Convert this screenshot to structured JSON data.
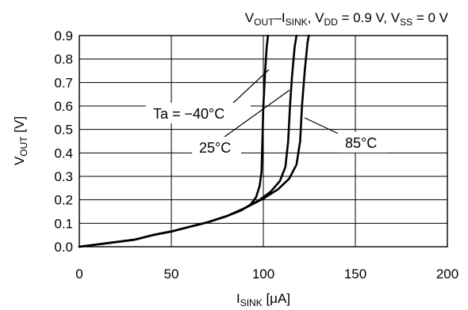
{
  "chart_data": {
    "type": "line",
    "title": {
      "parts": [
        {
          "text": "V",
          "sub": false
        },
        {
          "text": "OUT",
          "sub": true
        },
        {
          "text": "–I",
          "sub": false
        },
        {
          "text": "SINK",
          "sub": true
        },
        {
          "text": ", V",
          "sub": false
        },
        {
          "text": "DD",
          "sub": true
        },
        {
          "text": " = 0.9 V, V",
          "sub": false
        },
        {
          "text": "SS",
          "sub": true
        },
        {
          "text": " = 0 V",
          "sub": false
        }
      ]
    },
    "xlabel": {
      "parts": [
        {
          "text": "I",
          "sub": false
        },
        {
          "text": "SINK",
          "sub": true
        },
        {
          "text": " [μA]",
          "sub": false
        }
      ]
    },
    "ylabel": {
      "parts": [
        {
          "text": "V",
          "sub": false
        },
        {
          "text": "OUT",
          "sub": true
        },
        {
          "text": " [V]",
          "sub": false
        }
      ]
    },
    "xlim": [
      0,
      200
    ],
    "ylim": [
      0,
      0.9
    ],
    "xticks": [
      {
        "value": 0,
        "label": "0"
      },
      {
        "value": 50,
        "label": "50"
      },
      {
        "value": 100,
        "label": "100"
      },
      {
        "value": 150,
        "label": "150"
      },
      {
        "value": 200,
        "label": "200"
      }
    ],
    "yticks": [
      {
        "value": 0,
        "label": "0.0"
      },
      {
        "value": 0.1,
        "label": "0.1"
      },
      {
        "value": 0.2,
        "label": "0.2"
      },
      {
        "value": 0.3,
        "label": "0.3"
      },
      {
        "value": 0.4,
        "label": "0.4"
      },
      {
        "value": 0.5,
        "label": "0.5"
      },
      {
        "value": 0.6,
        "label": "0.6"
      },
      {
        "value": 0.7,
        "label": "0.7"
      },
      {
        "value": 0.8,
        "label": "0.8"
      },
      {
        "value": 0.9,
        "label": "0.9"
      }
    ],
    "grid": true,
    "series": [
      {
        "name": "Ta = −40°C",
        "points": [
          [
            0,
            0
          ],
          [
            10,
            0.01
          ],
          [
            20,
            0.02
          ],
          [
            30,
            0.03
          ],
          [
            40,
            0.05
          ],
          [
            50,
            0.065
          ],
          [
            60,
            0.085
          ],
          [
            70,
            0.105
          ],
          [
            80,
            0.13
          ],
          [
            88,
            0.155
          ],
          [
            93,
            0.18
          ],
          [
            96,
            0.21
          ],
          [
            98,
            0.26
          ],
          [
            99,
            0.32
          ],
          [
            99.5,
            0.45
          ],
          [
            100,
            0.6
          ],
          [
            101,
            0.75
          ],
          [
            101.8,
            0.85
          ],
          [
            102.5,
            0.9
          ]
        ]
      },
      {
        "name": "25°C",
        "points": [
          [
            0,
            0
          ],
          [
            10,
            0.01
          ],
          [
            20,
            0.02
          ],
          [
            30,
            0.03
          ],
          [
            40,
            0.05
          ],
          [
            50,
            0.065
          ],
          [
            60,
            0.085
          ],
          [
            70,
            0.105
          ],
          [
            80,
            0.13
          ],
          [
            90,
            0.165
          ],
          [
            98,
            0.2
          ],
          [
            104,
            0.235
          ],
          [
            109,
            0.28
          ],
          [
            112,
            0.34
          ],
          [
            113.5,
            0.45
          ],
          [
            114.5,
            0.6
          ],
          [
            115.5,
            0.72
          ],
          [
            117,
            0.85
          ],
          [
            118,
            0.9
          ]
        ]
      },
      {
        "name": "85°C",
        "points": [
          [
            0,
            0
          ],
          [
            10,
            0.01
          ],
          [
            20,
            0.02
          ],
          [
            30,
            0.03
          ],
          [
            40,
            0.05
          ],
          [
            50,
            0.065
          ],
          [
            60,
            0.085
          ],
          [
            70,
            0.105
          ],
          [
            80,
            0.13
          ],
          [
            90,
            0.165
          ],
          [
            100,
            0.205
          ],
          [
            108,
            0.245
          ],
          [
            114,
            0.29
          ],
          [
            118,
            0.35
          ],
          [
            120,
            0.45
          ],
          [
            121,
            0.6
          ],
          [
            122.5,
            0.75
          ],
          [
            124,
            0.87
          ],
          [
            124.7,
            0.9
          ]
        ]
      }
    ],
    "annotations": [
      {
        "text": "Ta = −40°C",
        "series": 0
      },
      {
        "text": "25°C",
        "series": 1
      },
      {
        "text": "85°C",
        "series": 2
      }
    ]
  }
}
